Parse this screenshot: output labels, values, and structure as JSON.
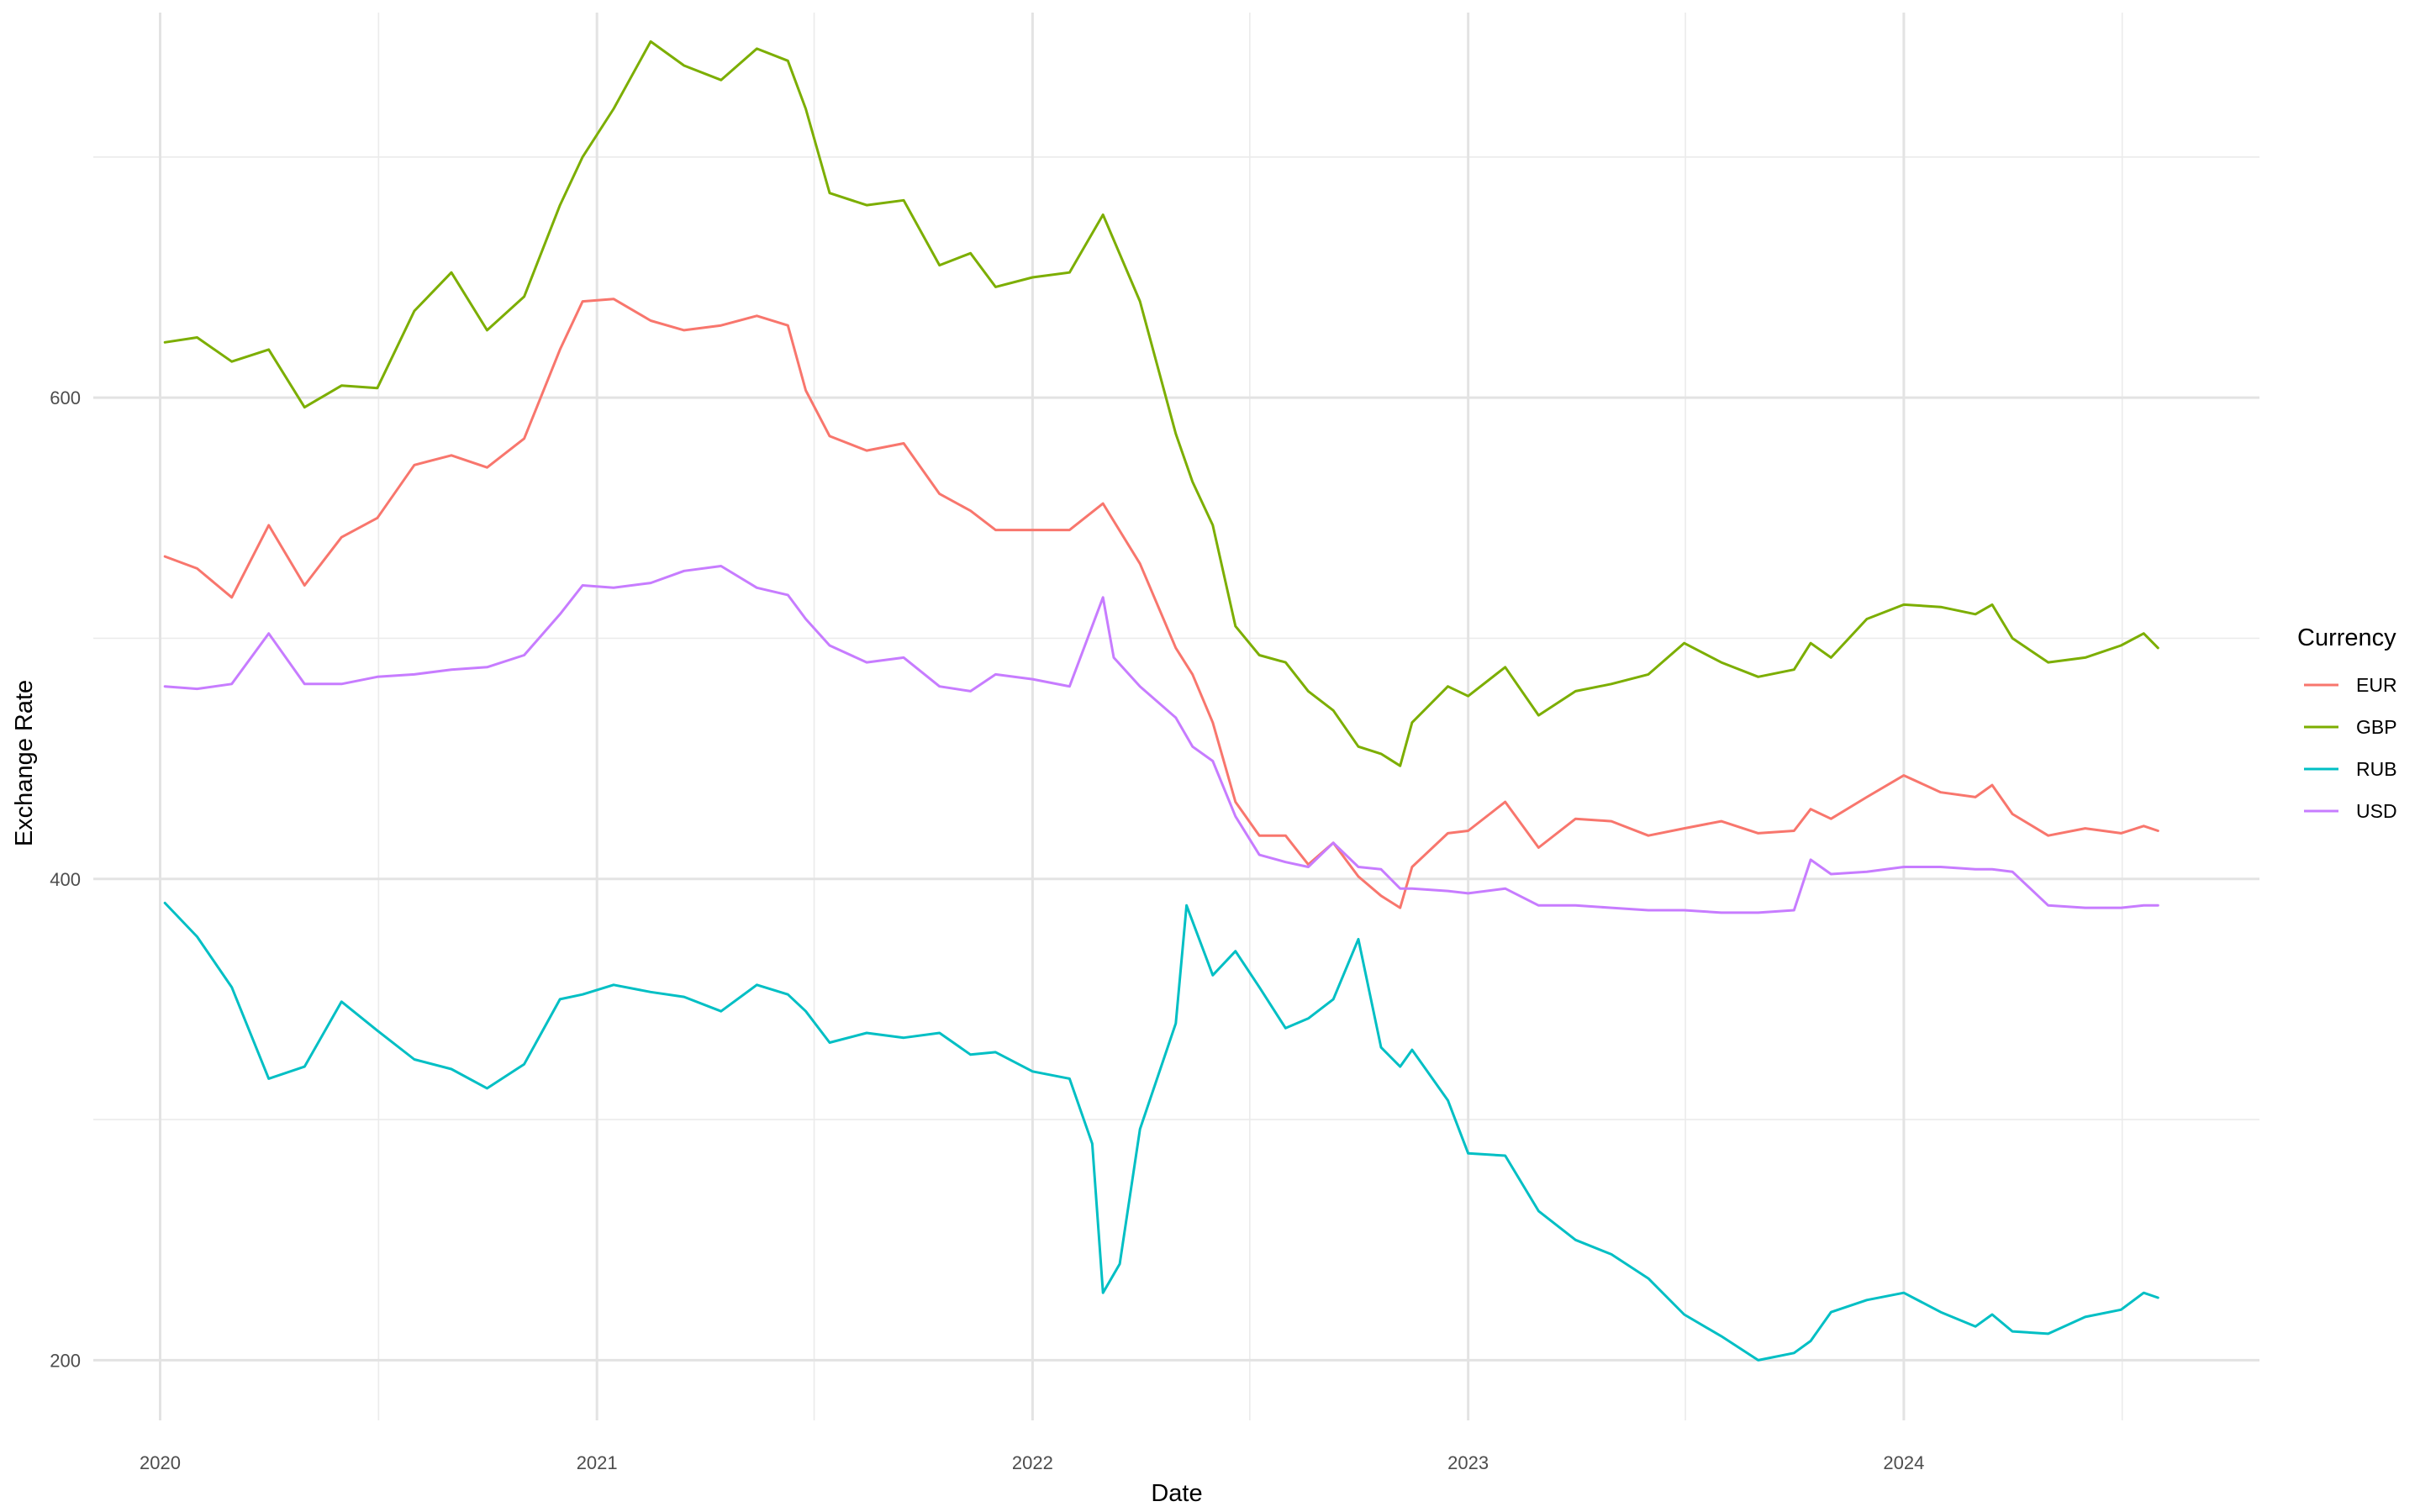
{
  "chart_data": {
    "type": "line",
    "xlabel": "Date",
    "ylabel": "Exchange Rate",
    "x_ticks": [
      "2020",
      "2021",
      "2022",
      "2023",
      "2024"
    ],
    "y_ticks": [
      200,
      400,
      600
    ],
    "ylim": [
      175,
      760
    ],
    "xlim": [
      "2019-11-06",
      "2024-10-25"
    ],
    "grid": true,
    "legend": {
      "title": "Currency",
      "position": "right"
    },
    "series": [
      {
        "name": "EUR",
        "color": "#F8766D",
        "points": [
          [
            "2020-01-05",
            534
          ],
          [
            "2020-02-01",
            529
          ],
          [
            "2020-03-01",
            517
          ],
          [
            "2020-04-01",
            547
          ],
          [
            "2020-05-01",
            522
          ],
          [
            "2020-06-01",
            542
          ],
          [
            "2020-07-01",
            550
          ],
          [
            "2020-08-01",
            572
          ],
          [
            "2020-09-01",
            576
          ],
          [
            "2020-10-01",
            571
          ],
          [
            "2020-11-01",
            583
          ],
          [
            "2020-12-01",
            620
          ],
          [
            "2020-12-20",
            640
          ],
          [
            "2021-01-15",
            641
          ],
          [
            "2021-02-15",
            632
          ],
          [
            "2021-03-15",
            628
          ],
          [
            "2021-04-15",
            630
          ],
          [
            "2021-05-15",
            634
          ],
          [
            "2021-06-10",
            630
          ],
          [
            "2021-06-25",
            603
          ],
          [
            "2021-07-15",
            584
          ],
          [
            "2021-08-15",
            578
          ],
          [
            "2021-09-15",
            581
          ],
          [
            "2021-10-15",
            560
          ],
          [
            "2021-11-10",
            553
          ],
          [
            "2021-12-01",
            545
          ],
          [
            "2022-01-01",
            545
          ],
          [
            "2022-02-01",
            545
          ],
          [
            "2022-03-01",
            556
          ],
          [
            "2022-04-01",
            531
          ],
          [
            "2022-05-01",
            496
          ],
          [
            "2022-05-15",
            485
          ],
          [
            "2022-06-01",
            465
          ],
          [
            "2022-06-20",
            432
          ],
          [
            "2022-07-10",
            418
          ],
          [
            "2022-08-01",
            418
          ],
          [
            "2022-08-20",
            406
          ],
          [
            "2022-09-10",
            415
          ],
          [
            "2022-10-01",
            401
          ],
          [
            "2022-10-20",
            393
          ],
          [
            "2022-11-05",
            388
          ],
          [
            "2022-11-15",
            405
          ],
          [
            "2022-12-15",
            419
          ],
          [
            "2023-01-01",
            420
          ],
          [
            "2023-02-01",
            432
          ],
          [
            "2023-03-01",
            413
          ],
          [
            "2023-04-01",
            425
          ],
          [
            "2023-05-01",
            424
          ],
          [
            "2023-06-01",
            418
          ],
          [
            "2023-07-01",
            421
          ],
          [
            "2023-08-01",
            424
          ],
          [
            "2023-09-01",
            419
          ],
          [
            "2023-10-01",
            420
          ],
          [
            "2023-10-15",
            429
          ],
          [
            "2023-11-01",
            425
          ],
          [
            "2023-12-01",
            434
          ],
          [
            "2024-01-01",
            443
          ],
          [
            "2024-02-01",
            436
          ],
          [
            "2024-03-01",
            434
          ],
          [
            "2024-03-15",
            439
          ],
          [
            "2024-04-01",
            427
          ],
          [
            "2024-05-01",
            418
          ],
          [
            "2024-06-01",
            421
          ],
          [
            "2024-07-01",
            419
          ],
          [
            "2024-07-20",
            422
          ],
          [
            "2024-08-01",
            420
          ]
        ]
      },
      {
        "name": "GBP",
        "color": "#7CAE00",
        "points": [
          [
            "2020-01-05",
            623
          ],
          [
            "2020-02-01",
            625
          ],
          [
            "2020-03-01",
            615
          ],
          [
            "2020-04-01",
            620
          ],
          [
            "2020-05-01",
            596
          ],
          [
            "2020-06-01",
            605
          ],
          [
            "2020-07-01",
            604
          ],
          [
            "2020-08-01",
            636
          ],
          [
            "2020-09-01",
            652
          ],
          [
            "2020-10-01",
            628
          ],
          [
            "2020-11-01",
            642
          ],
          [
            "2020-12-01",
            680
          ],
          [
            "2020-12-20",
            700
          ],
          [
            "2021-01-15",
            720
          ],
          [
            "2021-02-15",
            748
          ],
          [
            "2021-03-15",
            738
          ],
          [
            "2021-04-15",
            732
          ],
          [
            "2021-05-15",
            745
          ],
          [
            "2021-06-10",
            740
          ],
          [
            "2021-06-25",
            720
          ],
          [
            "2021-07-15",
            685
          ],
          [
            "2021-08-15",
            680
          ],
          [
            "2021-09-15",
            682
          ],
          [
            "2021-10-15",
            655
          ],
          [
            "2021-11-10",
            660
          ],
          [
            "2021-12-01",
            646
          ],
          [
            "2022-01-01",
            650
          ],
          [
            "2022-02-01",
            652
          ],
          [
            "2022-03-01",
            676
          ],
          [
            "2022-04-01",
            640
          ],
          [
            "2022-05-01",
            585
          ],
          [
            "2022-05-15",
            565
          ],
          [
            "2022-06-01",
            547
          ],
          [
            "2022-06-20",
            505
          ],
          [
            "2022-07-10",
            493
          ],
          [
            "2022-08-01",
            490
          ],
          [
            "2022-08-20",
            478
          ],
          [
            "2022-09-10",
            470
          ],
          [
            "2022-10-01",
            455
          ],
          [
            "2022-10-20",
            452
          ],
          [
            "2022-11-05",
            447
          ],
          [
            "2022-11-15",
            465
          ],
          [
            "2022-12-15",
            480
          ],
          [
            "2023-01-01",
            476
          ],
          [
            "2023-02-01",
            488
          ],
          [
            "2023-03-01",
            468
          ],
          [
            "2023-04-01",
            478
          ],
          [
            "2023-05-01",
            481
          ],
          [
            "2023-06-01",
            485
          ],
          [
            "2023-07-01",
            498
          ],
          [
            "2023-08-01",
            490
          ],
          [
            "2023-09-01",
            484
          ],
          [
            "2023-10-01",
            487
          ],
          [
            "2023-10-15",
            498
          ],
          [
            "2023-11-01",
            492
          ],
          [
            "2023-12-01",
            508
          ],
          [
            "2024-01-01",
            514
          ],
          [
            "2024-02-01",
            513
          ],
          [
            "2024-03-01",
            510
          ],
          [
            "2024-03-15",
            514
          ],
          [
            "2024-04-01",
            500
          ],
          [
            "2024-05-01",
            490
          ],
          [
            "2024-06-01",
            492
          ],
          [
            "2024-07-01",
            497
          ],
          [
            "2024-07-20",
            502
          ],
          [
            "2024-08-01",
            496
          ]
        ]
      },
      {
        "name": "RUB",
        "color": "#00BFC4",
        "points": [
          [
            "2020-01-05",
            390
          ],
          [
            "2020-02-01",
            376
          ],
          [
            "2020-03-01",
            355
          ],
          [
            "2020-04-01",
            317
          ],
          [
            "2020-05-01",
            322
          ],
          [
            "2020-06-01",
            349
          ],
          [
            "2020-07-01",
            337
          ],
          [
            "2020-08-01",
            325
          ],
          [
            "2020-09-01",
            321
          ],
          [
            "2020-10-01",
            313
          ],
          [
            "2020-11-01",
            323
          ],
          [
            "2020-12-01",
            350
          ],
          [
            "2020-12-20",
            352
          ],
          [
            "2021-01-15",
            356
          ],
          [
            "2021-02-15",
            353
          ],
          [
            "2021-03-15",
            351
          ],
          [
            "2021-04-15",
            345
          ],
          [
            "2021-05-15",
            356
          ],
          [
            "2021-06-10",
            352
          ],
          [
            "2021-06-25",
            345
          ],
          [
            "2021-07-15",
            332
          ],
          [
            "2021-08-15",
            336
          ],
          [
            "2021-09-15",
            334
          ],
          [
            "2021-10-15",
            336
          ],
          [
            "2021-11-10",
            327
          ],
          [
            "2021-12-01",
            328
          ],
          [
            "2022-01-01",
            320
          ],
          [
            "2022-02-01",
            317
          ],
          [
            "2022-02-20",
            290
          ],
          [
            "2022-03-01",
            228
          ],
          [
            "2022-03-15",
            240
          ],
          [
            "2022-04-01",
            296
          ],
          [
            "2022-05-01",
            340
          ],
          [
            "2022-05-10",
            389
          ],
          [
            "2022-06-01",
            360
          ],
          [
            "2022-06-20",
            370
          ],
          [
            "2022-07-10",
            355
          ],
          [
            "2022-08-01",
            338
          ],
          [
            "2022-08-20",
            342
          ],
          [
            "2022-09-10",
            350
          ],
          [
            "2022-10-01",
            375
          ],
          [
            "2022-10-20",
            330
          ],
          [
            "2022-11-05",
            322
          ],
          [
            "2022-11-15",
            329
          ],
          [
            "2022-12-15",
            308
          ],
          [
            "2023-01-01",
            286
          ],
          [
            "2023-02-01",
            285
          ],
          [
            "2023-03-01",
            262
          ],
          [
            "2023-04-01",
            250
          ],
          [
            "2023-05-01",
            244
          ],
          [
            "2023-06-01",
            234
          ],
          [
            "2023-07-01",
            219
          ],
          [
            "2023-08-01",
            210
          ],
          [
            "2023-09-01",
            200
          ],
          [
            "2023-10-01",
            203
          ],
          [
            "2023-10-15",
            208
          ],
          [
            "2023-11-01",
            220
          ],
          [
            "2023-12-01",
            225
          ],
          [
            "2024-01-01",
            228
          ],
          [
            "2024-02-01",
            220
          ],
          [
            "2024-03-01",
            214
          ],
          [
            "2024-03-15",
            219
          ],
          [
            "2024-04-01",
            212
          ],
          [
            "2024-05-01",
            211
          ],
          [
            "2024-06-01",
            218
          ],
          [
            "2024-07-01",
            221
          ],
          [
            "2024-07-20",
            228
          ],
          [
            "2024-08-01",
            226
          ]
        ]
      },
      {
        "name": "USD",
        "color": "#C77CFF",
        "points": [
          [
            "2020-01-05",
            480
          ],
          [
            "2020-02-01",
            479
          ],
          [
            "2020-03-01",
            481
          ],
          [
            "2020-04-01",
            502
          ],
          [
            "2020-05-01",
            481
          ],
          [
            "2020-06-01",
            481
          ],
          [
            "2020-07-01",
            484
          ],
          [
            "2020-08-01",
            485
          ],
          [
            "2020-09-01",
            487
          ],
          [
            "2020-10-01",
            488
          ],
          [
            "2020-11-01",
            493
          ],
          [
            "2020-12-01",
            510
          ],
          [
            "2020-12-20",
            522
          ],
          [
            "2021-01-15",
            521
          ],
          [
            "2021-02-15",
            523
          ],
          [
            "2021-03-15",
            528
          ],
          [
            "2021-04-15",
            530
          ],
          [
            "2021-05-15",
            521
          ],
          [
            "2021-06-10",
            518
          ],
          [
            "2021-06-25",
            508
          ],
          [
            "2021-07-15",
            497
          ],
          [
            "2021-08-15",
            490
          ],
          [
            "2021-09-15",
            492
          ],
          [
            "2021-10-15",
            480
          ],
          [
            "2021-11-10",
            478
          ],
          [
            "2021-12-01",
            485
          ],
          [
            "2022-01-01",
            483
          ],
          [
            "2022-02-01",
            480
          ],
          [
            "2022-03-01",
            517
          ],
          [
            "2022-03-10",
            492
          ],
          [
            "2022-04-01",
            480
          ],
          [
            "2022-05-01",
            467
          ],
          [
            "2022-05-15",
            455
          ],
          [
            "2022-06-01",
            449
          ],
          [
            "2022-06-20",
            426
          ],
          [
            "2022-07-10",
            410
          ],
          [
            "2022-08-01",
            407
          ],
          [
            "2022-08-20",
            405
          ],
          [
            "2022-09-10",
            415
          ],
          [
            "2022-10-01",
            405
          ],
          [
            "2022-10-20",
            404
          ],
          [
            "2022-11-05",
            396
          ],
          [
            "2022-11-15",
            396
          ],
          [
            "2022-12-15",
            395
          ],
          [
            "2023-01-01",
            394
          ],
          [
            "2023-02-01",
            396
          ],
          [
            "2023-03-01",
            389
          ],
          [
            "2023-04-01",
            389
          ],
          [
            "2023-05-01",
            388
          ],
          [
            "2023-06-01",
            387
          ],
          [
            "2023-07-01",
            387
          ],
          [
            "2023-08-01",
            386
          ],
          [
            "2023-09-01",
            386
          ],
          [
            "2023-10-01",
            387
          ],
          [
            "2023-10-15",
            408
          ],
          [
            "2023-11-01",
            402
          ],
          [
            "2023-12-01",
            403
          ],
          [
            "2024-01-01",
            405
          ],
          [
            "2024-02-01",
            405
          ],
          [
            "2024-03-01",
            404
          ],
          [
            "2024-03-15",
            404
          ],
          [
            "2024-04-01",
            403
          ],
          [
            "2024-05-01",
            389
          ],
          [
            "2024-06-01",
            388
          ],
          [
            "2024-07-01",
            388
          ],
          [
            "2024-07-20",
            389
          ],
          [
            "2024-08-01",
            389
          ]
        ]
      }
    ]
  }
}
